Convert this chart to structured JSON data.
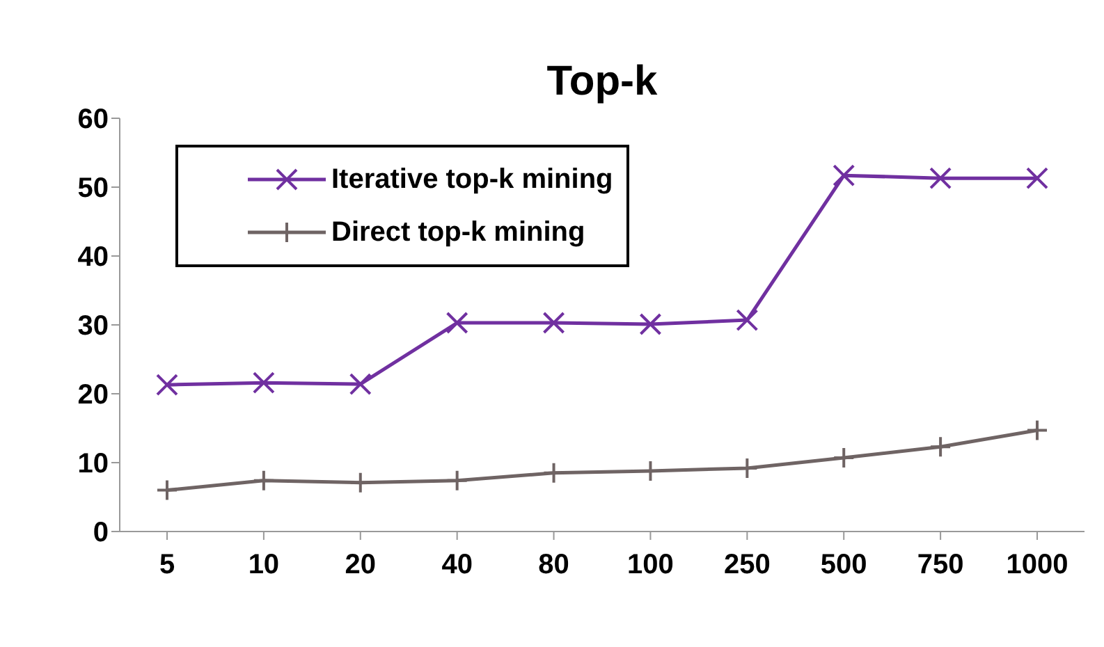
{
  "chart_data": {
    "type": "line",
    "title": "Top-k",
    "categories": [
      "5",
      "10",
      "20",
      "40",
      "80",
      "100",
      "250",
      "500",
      "750",
      "1000"
    ],
    "series": [
      {
        "name": "Iterative top-k mining",
        "color": "#7030a0",
        "marker": "cross",
        "values": [
          21.3,
          21.6,
          21.4,
          30.3,
          30.3,
          30.1,
          30.7,
          51.7,
          51.3,
          51.3
        ]
      },
      {
        "name": "Direct top-k mining",
        "color": "#6f6464",
        "marker": "plus",
        "values": [
          6.0,
          7.4,
          7.1,
          7.4,
          8.5,
          8.8,
          9.2,
          10.7,
          12.3,
          14.7
        ]
      }
    ],
    "ylim": [
      0,
      60
    ],
    "yticks": [
      0,
      10,
      20,
      30,
      40,
      50,
      60
    ],
    "grid": false,
    "legend": "top left"
  }
}
